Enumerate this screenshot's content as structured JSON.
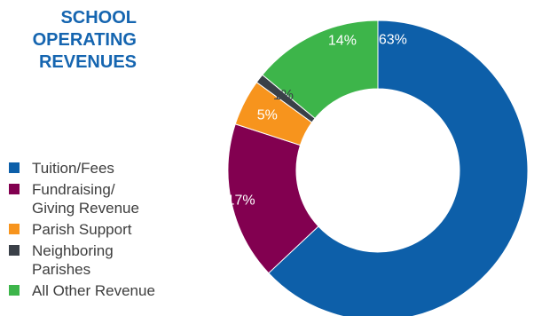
{
  "chart_data": {
    "type": "pie",
    "title_lines": [
      "SCHOOL",
      "OPERATING",
      "REVENUES"
    ],
    "categories": [
      "Tuition/Fees",
      "Fundraising/\nGiving Revenue",
      "Parish Support",
      "Neighboring\nParishes",
      "All Other Revenue"
    ],
    "values": [
      63,
      17,
      5,
      1,
      14
    ],
    "value_labels": [
      "63%",
      "17%",
      "5%",
      "1%",
      "14%"
    ],
    "colors": [
      "#0d5fa9",
      "#820050",
      "#f7941d",
      "#3a4048",
      "#3db54a"
    ],
    "legend_position": "left",
    "donut": true
  }
}
